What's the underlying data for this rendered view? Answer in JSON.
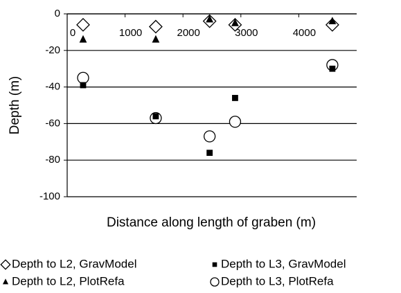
{
  "chart_data": {
    "type": "scatter",
    "x_label": "Distance along length of graben (m)",
    "y_label": "Depth (m)",
    "xlim": [
      0,
      5000
    ],
    "xticks": [
      0,
      1000,
      2000,
      3000,
      4000
    ],
    "ylim": [
      -100,
      0
    ],
    "yticks": [
      -100,
      -80,
      -60,
      -40,
      -20,
      0
    ],
    "grid": true,
    "legend": "bottom",
    "series": [
      {
        "name": "Depth to L2, GravModel",
        "color": "#000000",
        "marker": "diamond-open",
        "x": [
          275,
          1530,
          2460,
          2900,
          4580
        ],
        "values": [
          -6,
          -7,
          -4,
          -6,
          -6
        ]
      },
      {
        "name": "Depth to L3, GravModel",
        "color": "#000000",
        "marker": "square",
        "x": [
          275,
          1530,
          2460,
          2900,
          4580
        ],
        "values": [
          -39,
          -56,
          -76,
          -46,
          -30
        ]
      },
      {
        "name": "Depth to L2, PlotRefa",
        "color": "#000000",
        "marker": "triangle",
        "x": [
          275,
          1530,
          2460,
          2900,
          4580
        ],
        "values": [
          -14,
          -14,
          -3,
          -5,
          -4
        ]
      },
      {
        "name": "Depth to L3, PlotRefa",
        "color": "#000000",
        "marker": "circle-open",
        "x": [
          275,
          1530,
          2460,
          2900,
          4580
        ],
        "values": [
          -35,
          -57,
          -67,
          -59,
          -28
        ]
      }
    ]
  }
}
